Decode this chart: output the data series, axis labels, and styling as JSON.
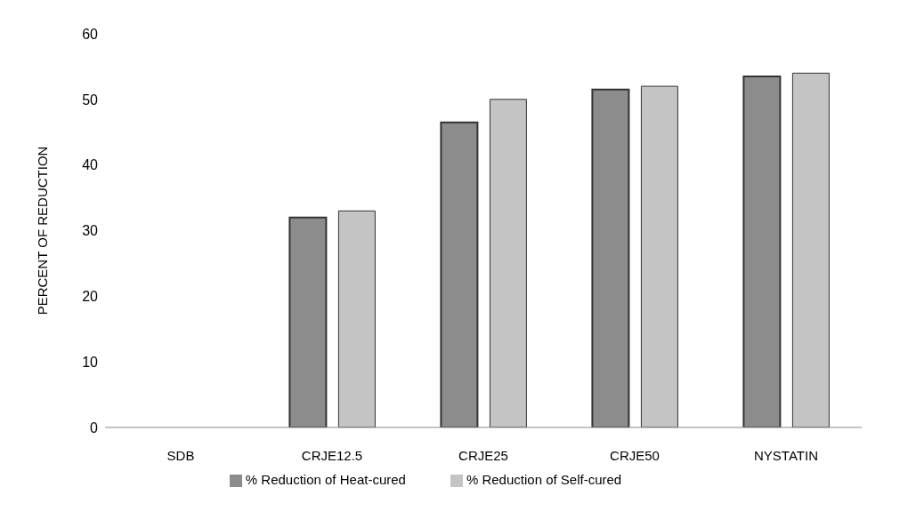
{
  "chart_data": {
    "type": "bar",
    "ylabel": "PERCENT OF REDUCTION",
    "categories": [
      "SDB",
      "CRJE12.5",
      "CRJE25",
      "CRJE50",
      "NYSTATIN"
    ],
    "series": [
      {
        "name": "% Reduction of Heat-cured",
        "color": "#8c8c8c",
        "values": [
          0,
          32,
          46.5,
          51.5,
          53.5
        ]
      },
      {
        "name": "% Reduction of Self-cured",
        "color": "#c4c4c4",
        "values": [
          0,
          33,
          50,
          52,
          54
        ]
      }
    ],
    "ylim": [
      0,
      60
    ],
    "yticks": [
      0,
      10,
      20,
      30,
      40,
      50,
      60
    ],
    "legend": "bottom"
  }
}
